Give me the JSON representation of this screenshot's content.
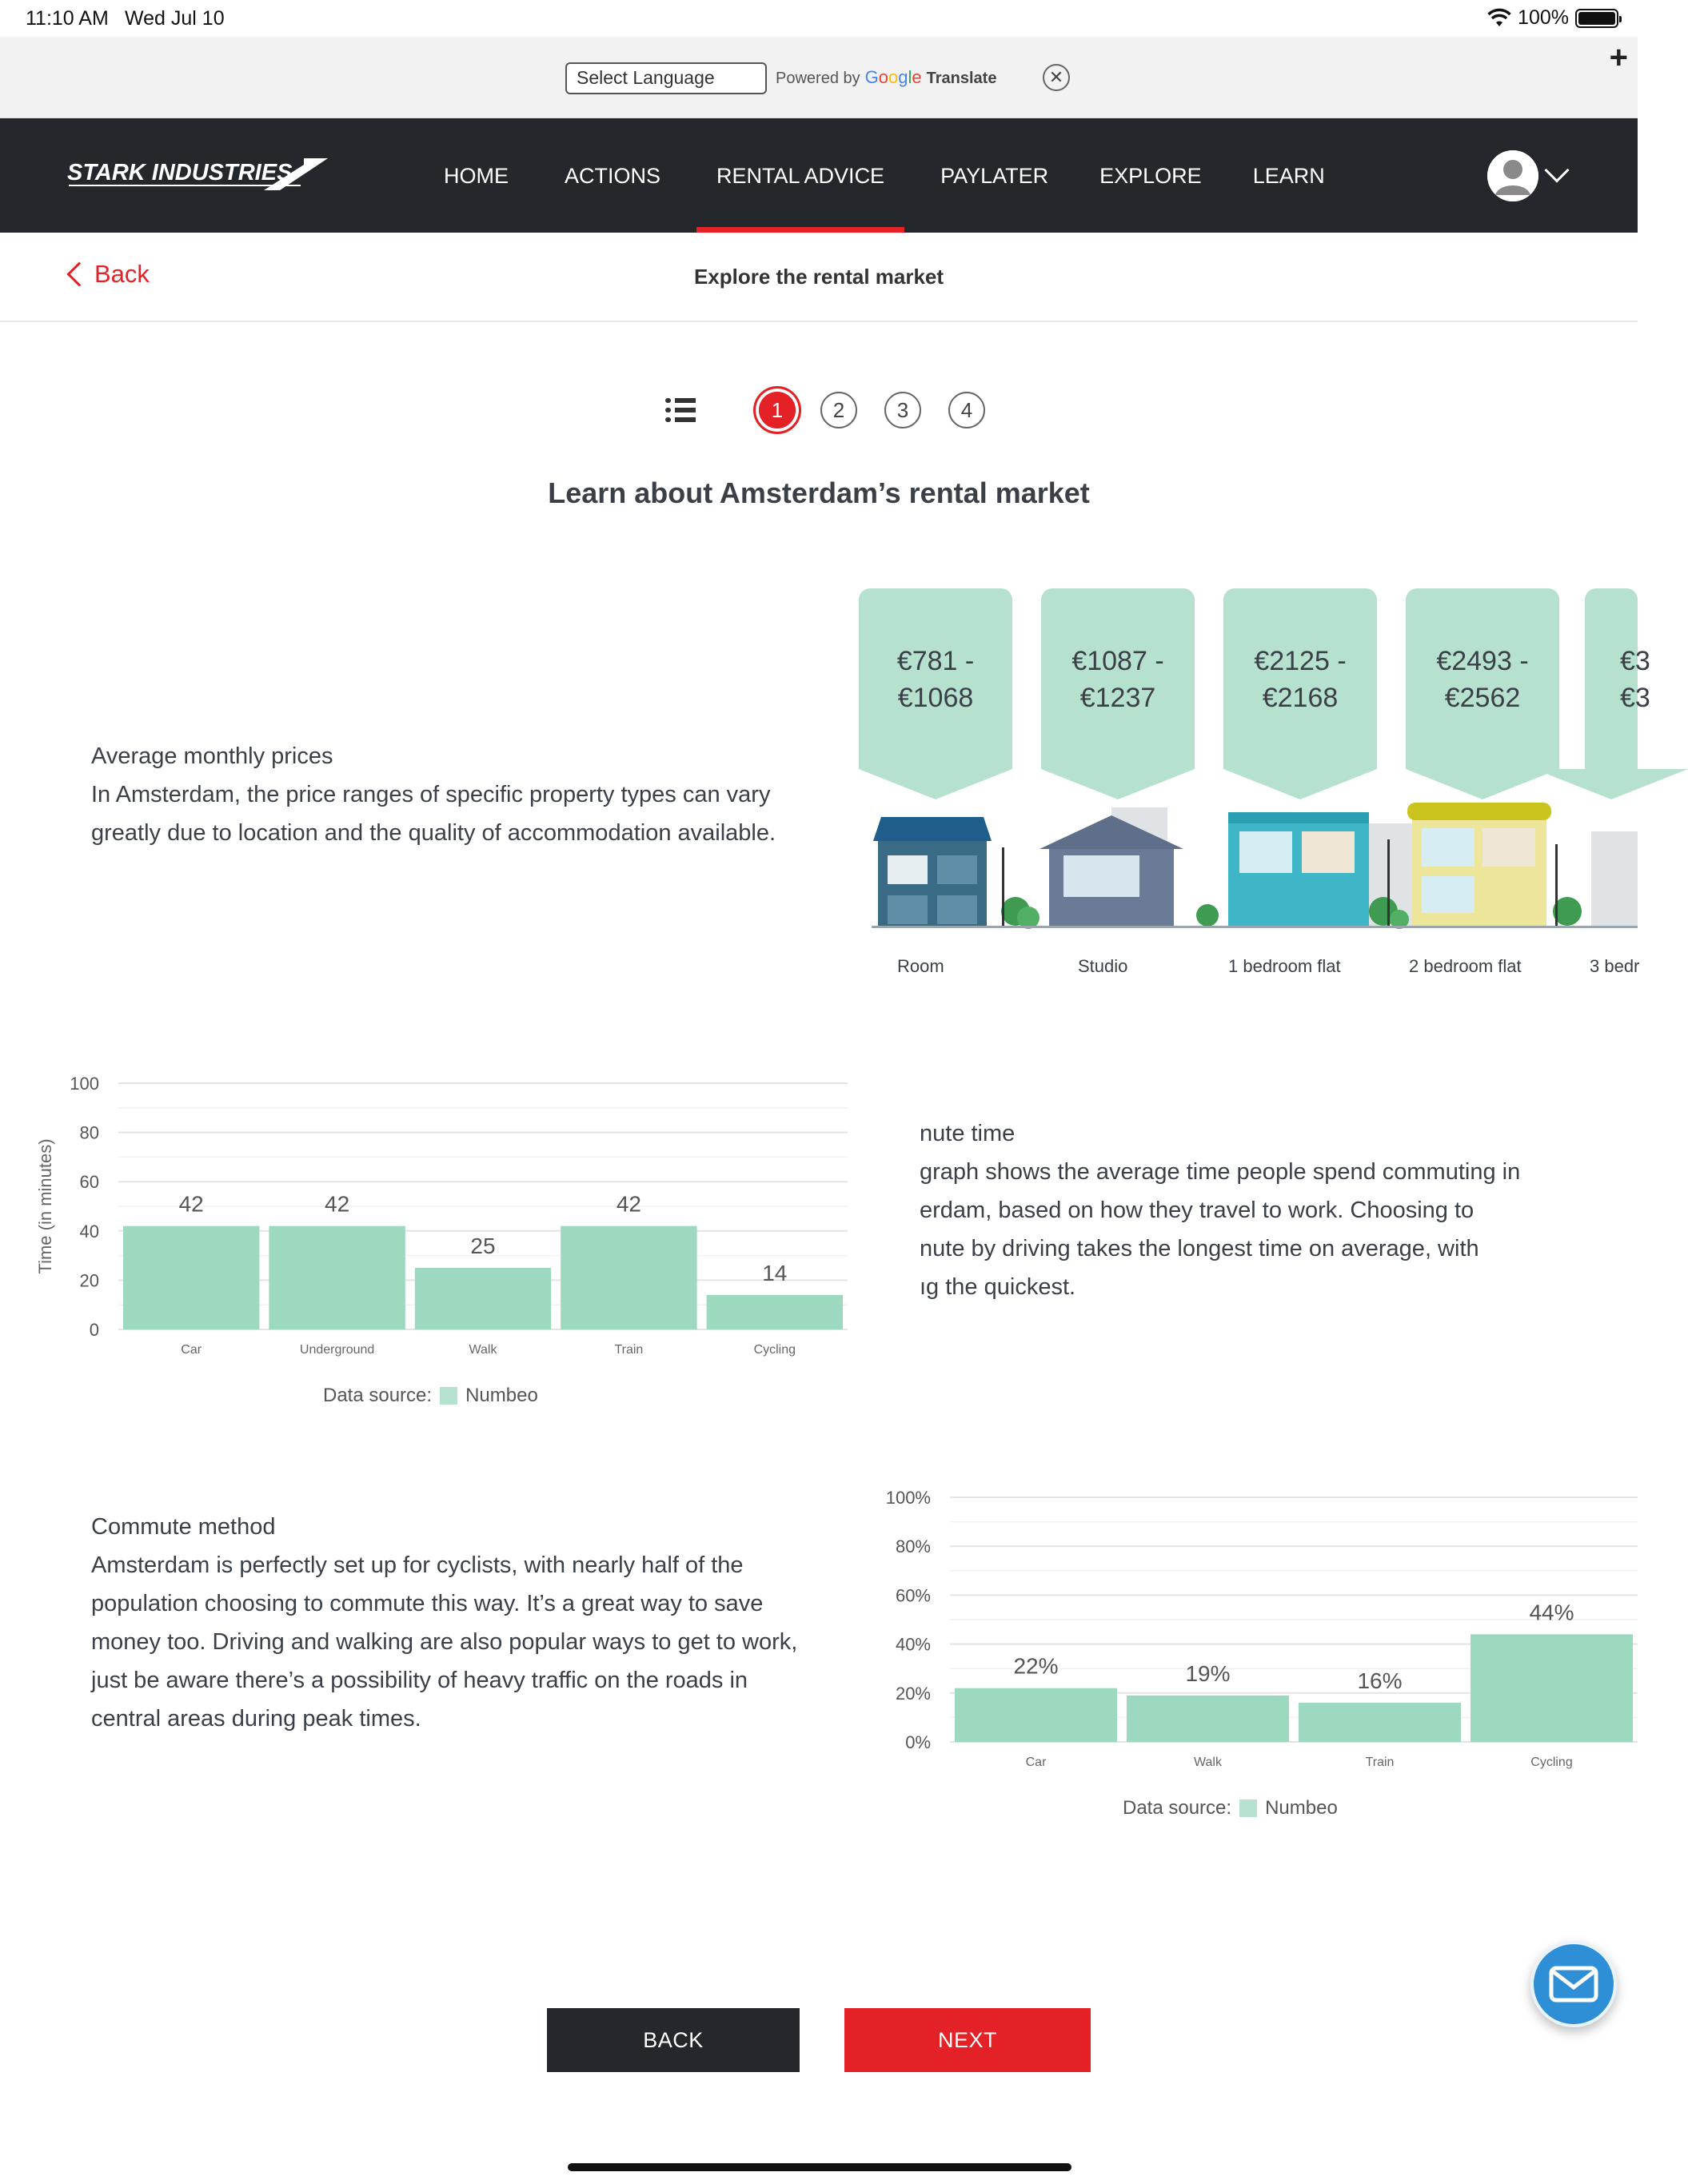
{
  "status_bar": {
    "time": "11:10 AM",
    "date": "Wed Jul 10",
    "battery": "100%"
  },
  "translate_bar": {
    "select_language": "Select Language",
    "powered_by": "Powered by",
    "google": [
      "G",
      "o",
      "o",
      "g",
      "l",
      "e"
    ],
    "translate": "Translate",
    "close": "✕",
    "plus": "+"
  },
  "nav": {
    "logo": "STARK INDUSTRIES",
    "items": [
      {
        "label": "HOME",
        "active": false
      },
      {
        "label": "ACTIONS",
        "active": false
      },
      {
        "label": "RENTAL ADVICE",
        "active": true
      },
      {
        "label": "PAYLATER",
        "active": false
      },
      {
        "label": "EXPLORE",
        "active": false
      },
      {
        "label": "LEARN",
        "active": false
      }
    ]
  },
  "subheader": {
    "back": "Back",
    "title": "Explore the rental market"
  },
  "stepper": {
    "steps": [
      "1",
      "2",
      "3",
      "4"
    ],
    "current": "1"
  },
  "page_title": "Learn about Amsterdam’s rental market",
  "prices_section": {
    "heading": "Average monthly prices",
    "body": "In Amsterdam, the price ranges of specific property types can vary greatly due to location and the quality of accommodation available.",
    "cards": [
      {
        "line1": "€781 -",
        "line2": "€1068",
        "label": "Room"
      },
      {
        "line1": "€1087 -",
        "line2": "€1237",
        "label": "Studio"
      },
      {
        "line1": "€2125 -",
        "line2": "€2168",
        "label": "1 bedroom flat"
      },
      {
        "line1": "€2493 -",
        "line2": "€2562",
        "label": "2 bedroom flat"
      },
      {
        "line1": "€3",
        "line2": "€3",
        "label": "3 bedr"
      }
    ]
  },
  "commute_time_section": {
    "heading": "nute time",
    "lines": [
      "graph shows the average time people spend commuting in",
      "erdam, based on how they travel to work. Choosing to",
      "nute by driving takes the longest time on average, with",
      "ıg the quickest."
    ],
    "legend_prefix": "Data source:",
    "legend_name": "Numbeo"
  },
  "commute_method_section": {
    "heading": "Commute method",
    "body": "Amsterdam is perfectly set up for cyclists, with nearly half of the population choosing to commute this way. It’s a great way to save money too. Driving and walking are also popular ways to get to work, just be aware there’s a possibility of heavy traffic on the roads in central areas during peak times.",
    "legend_prefix": "Data source:",
    "legend_name": "Numbeo"
  },
  "chart_data": [
    {
      "type": "bar",
      "title": "",
      "xlabel": "",
      "ylabel": "Time (in minutes)",
      "categories": [
        "Car",
        "Underground",
        "Walk",
        "Train",
        "Cycling"
      ],
      "values": [
        42,
        42,
        25,
        42,
        14
      ],
      "data_labels": [
        "42",
        "42",
        "25",
        "42",
        "14"
      ],
      "ylim": [
        0,
        100
      ],
      "yticks": [
        "0",
        "20",
        "40",
        "60",
        "80",
        "100"
      ],
      "grid": true,
      "legend": "bottom",
      "color": "#9dd9bf"
    },
    {
      "type": "bar",
      "title": "",
      "xlabel": "",
      "ylabel": "",
      "categories": [
        "Car",
        "Walk",
        "Train",
        "Cycling"
      ],
      "values": [
        22,
        19,
        16,
        44
      ],
      "data_labels": [
        "22%",
        "19%",
        "16%",
        "44%"
      ],
      "ylim": [
        0,
        100
      ],
      "yticks": [
        "0%",
        "20%",
        "40%",
        "60%",
        "80%",
        "100%"
      ],
      "grid": true,
      "legend": "bottom",
      "color": "#9dd9bf"
    }
  ],
  "buttons": {
    "back": "BACK",
    "next": "NEXT"
  },
  "colors": {
    "accent": "#e52128",
    "nav_bg": "#24272b",
    "mint": "#b7e1cf",
    "bar": "#9dd9bf"
  }
}
